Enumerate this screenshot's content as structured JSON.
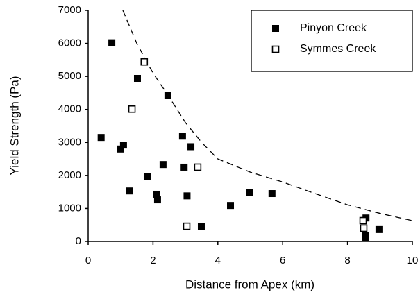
{
  "chart_data": {
    "type": "scatter",
    "xlabel": "Distance from Apex (km)",
    "ylabel": "Yield Strength (Pa)",
    "xlim": [
      0,
      10
    ],
    "ylim": [
      0,
      7000
    ],
    "xticks": [
      0,
      2,
      4,
      6,
      8,
      10
    ],
    "yticks": [
      0,
      1000,
      2000,
      3000,
      4000,
      5000,
      6000,
      7000
    ],
    "legend": "upper right",
    "series": [
      {
        "name": "Pinyon Creek",
        "color": "#000000",
        "marker": "filled-square",
        "x": [
          0.4,
          0.73,
          1.0,
          1.09,
          1.28,
          1.52,
          1.82,
          2.1,
          2.14,
          2.31,
          2.46,
          2.91,
          2.96,
          3.05,
          3.17,
          3.49,
          4.39,
          4.97,
          5.67,
          8.57,
          8.55,
          8.55,
          8.97
        ],
        "values": [
          3150,
          6020,
          2800,
          2920,
          1530,
          4940,
          1970,
          1430,
          1260,
          2330,
          4430,
          3190,
          2250,
          1380,
          2870,
          460,
          1090,
          1490,
          1450,
          710,
          180,
          100,
          360
        ]
      },
      {
        "name": "Symmes Creek",
        "color": "#000000",
        "marker": "open-square",
        "x": [
          1.73,
          1.35,
          3.38,
          3.04,
          8.48,
          8.5
        ],
        "values": [
          5440,
          4010,
          2250,
          460,
          630,
          400
        ]
      }
    ],
    "fit_curve": {
      "style": "dashed",
      "color": "#000000",
      "x": [
        1.07,
        1.5,
        2,
        2.45,
        3,
        3.5,
        4,
        5,
        6,
        7,
        8,
        9,
        10
      ],
      "values": [
        7000,
        6000,
        5100,
        4450,
        3600,
        3000,
        2500,
        2100,
        1800,
        1450,
        1110,
        850,
        630
      ]
    }
  }
}
